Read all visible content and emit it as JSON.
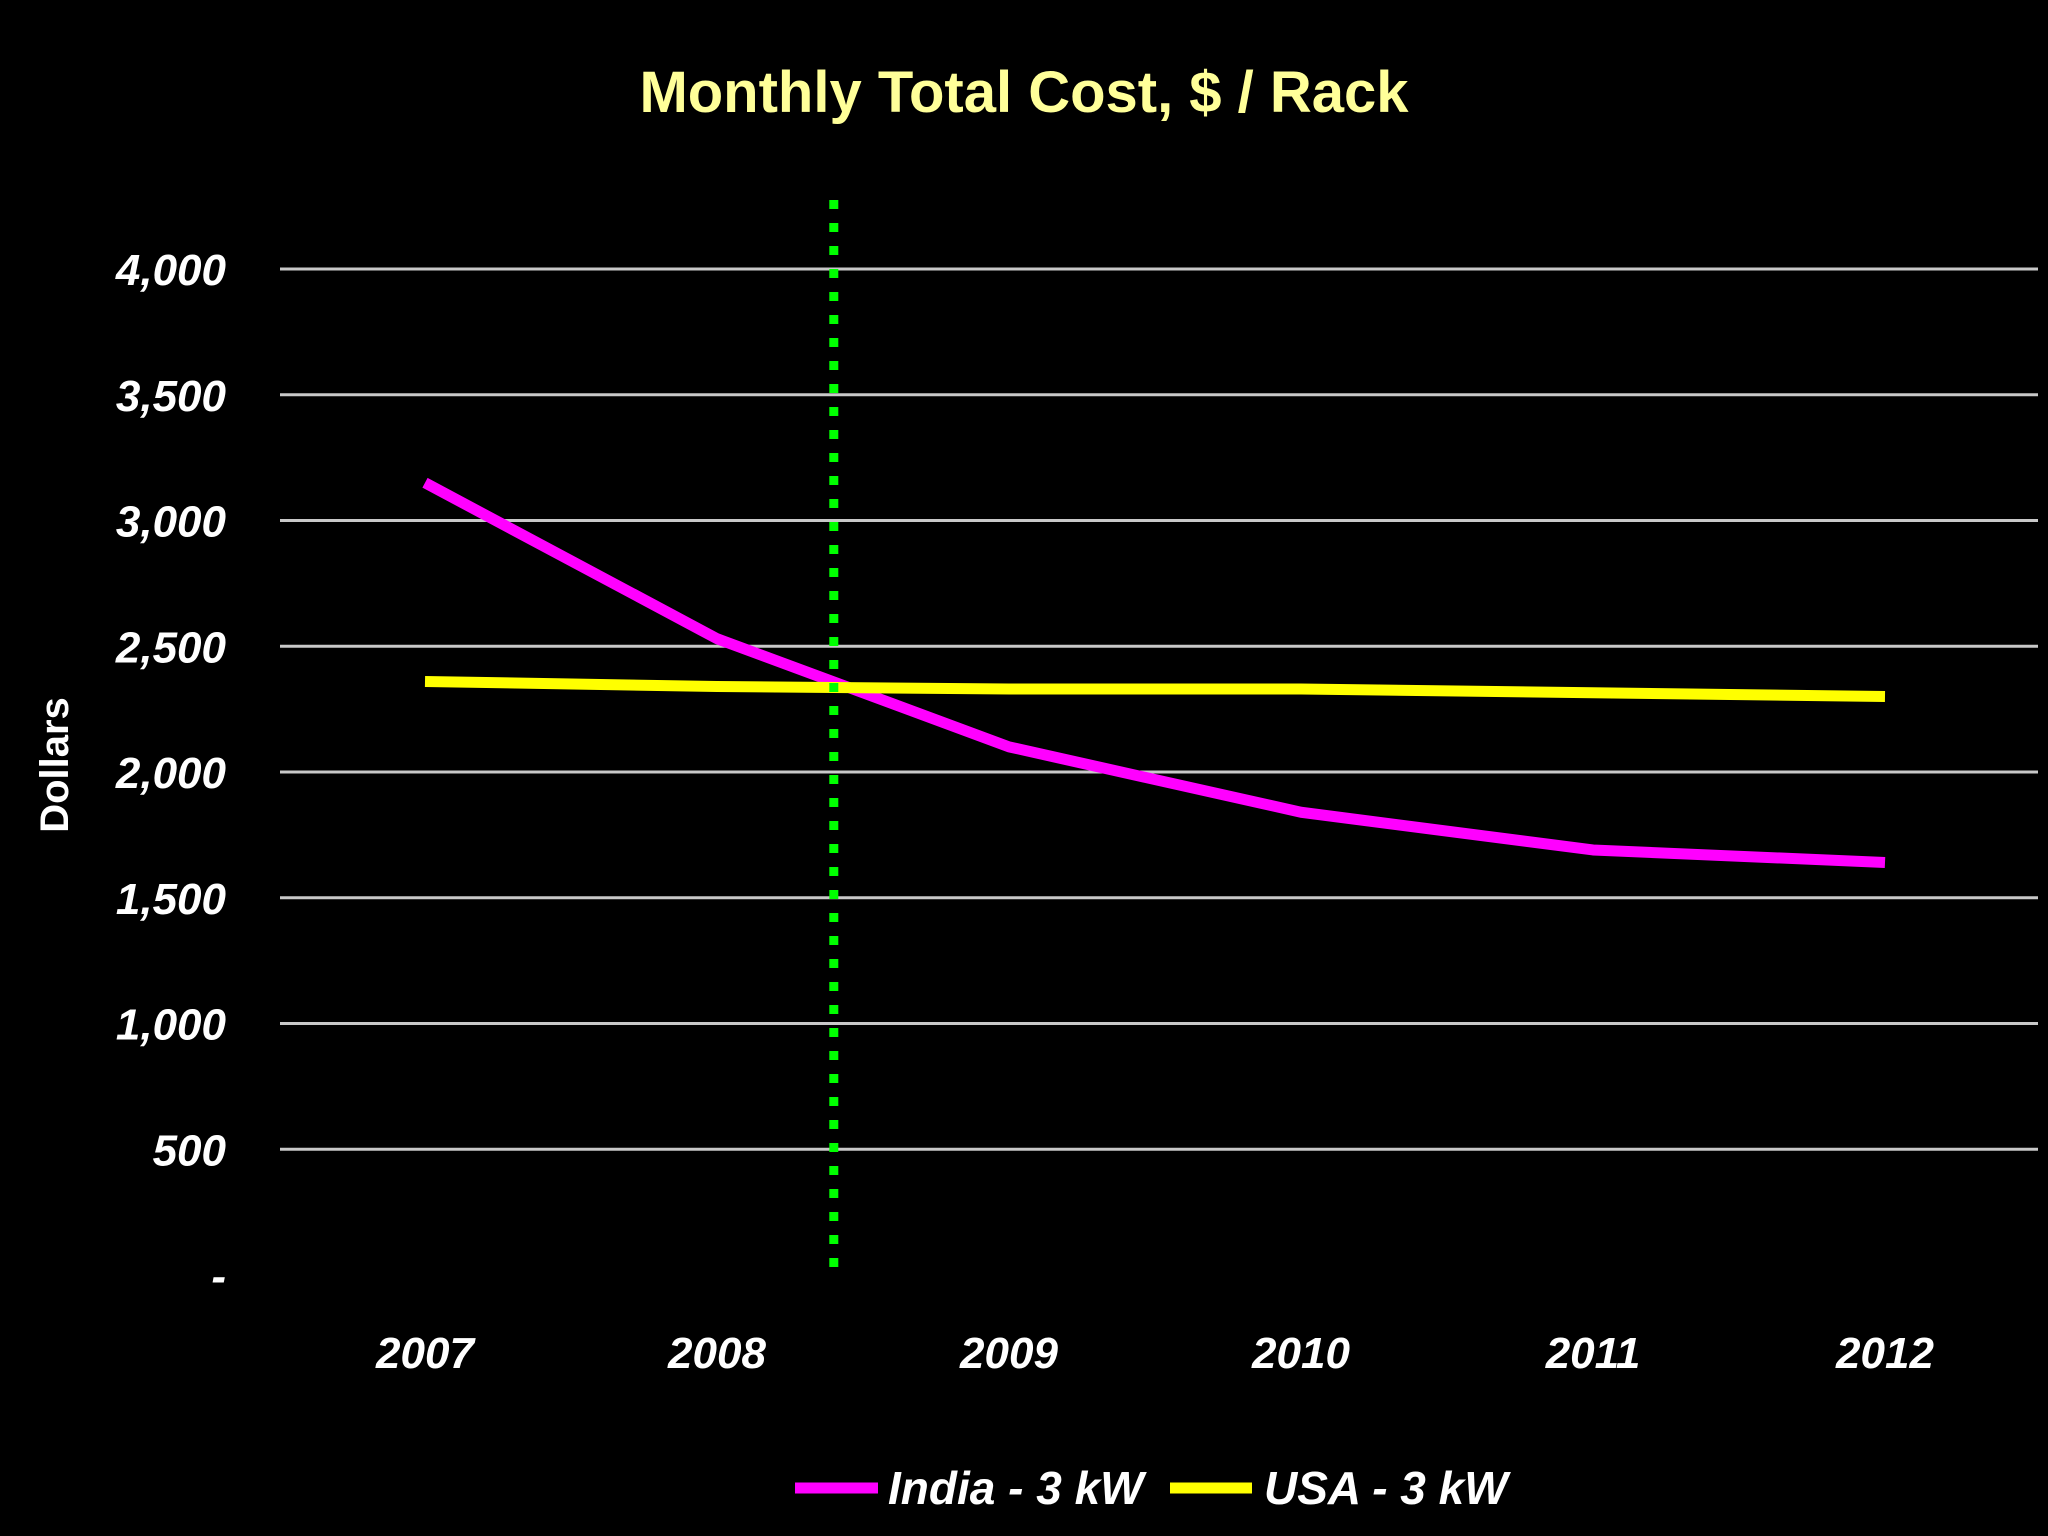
{
  "chart_data": {
    "type": "line",
    "title": "Monthly Total Cost, $ / Rack",
    "ylabel": "Dollars",
    "xlabel": "",
    "categories": [
      "2007",
      "2008",
      "2009",
      "2010",
      "2011",
      "2012"
    ],
    "ylim": [
      0,
      4000
    ],
    "y_ticks": [
      0,
      500,
      1000,
      1500,
      2000,
      2500,
      3000,
      3500,
      4000
    ],
    "y_tick_labels": [
      "-",
      "500",
      "1,000",
      "1,500",
      "2,000",
      "2,500",
      "3,000",
      "3,500",
      "4,000"
    ],
    "grid": true,
    "legend_position": "bottom",
    "series": [
      {
        "name": "India - 3 kW",
        "color": "#FF00FF",
        "values": [
          3150,
          2530,
          2100,
          1840,
          1690,
          1640
        ]
      },
      {
        "name": "USA - 3 kW",
        "color": "#FFFF00",
        "values": [
          2360,
          2340,
          2330,
          2330,
          2315,
          2300
        ]
      }
    ],
    "reference_line": {
      "type": "vertical",
      "x_position": 2008.4,
      "color": "#00FF00",
      "style": "dotted"
    }
  },
  "colors": {
    "background": "#000000",
    "title": "#FFFF99",
    "text": "#FFFFFF",
    "gridline": "#C8C8C8"
  }
}
